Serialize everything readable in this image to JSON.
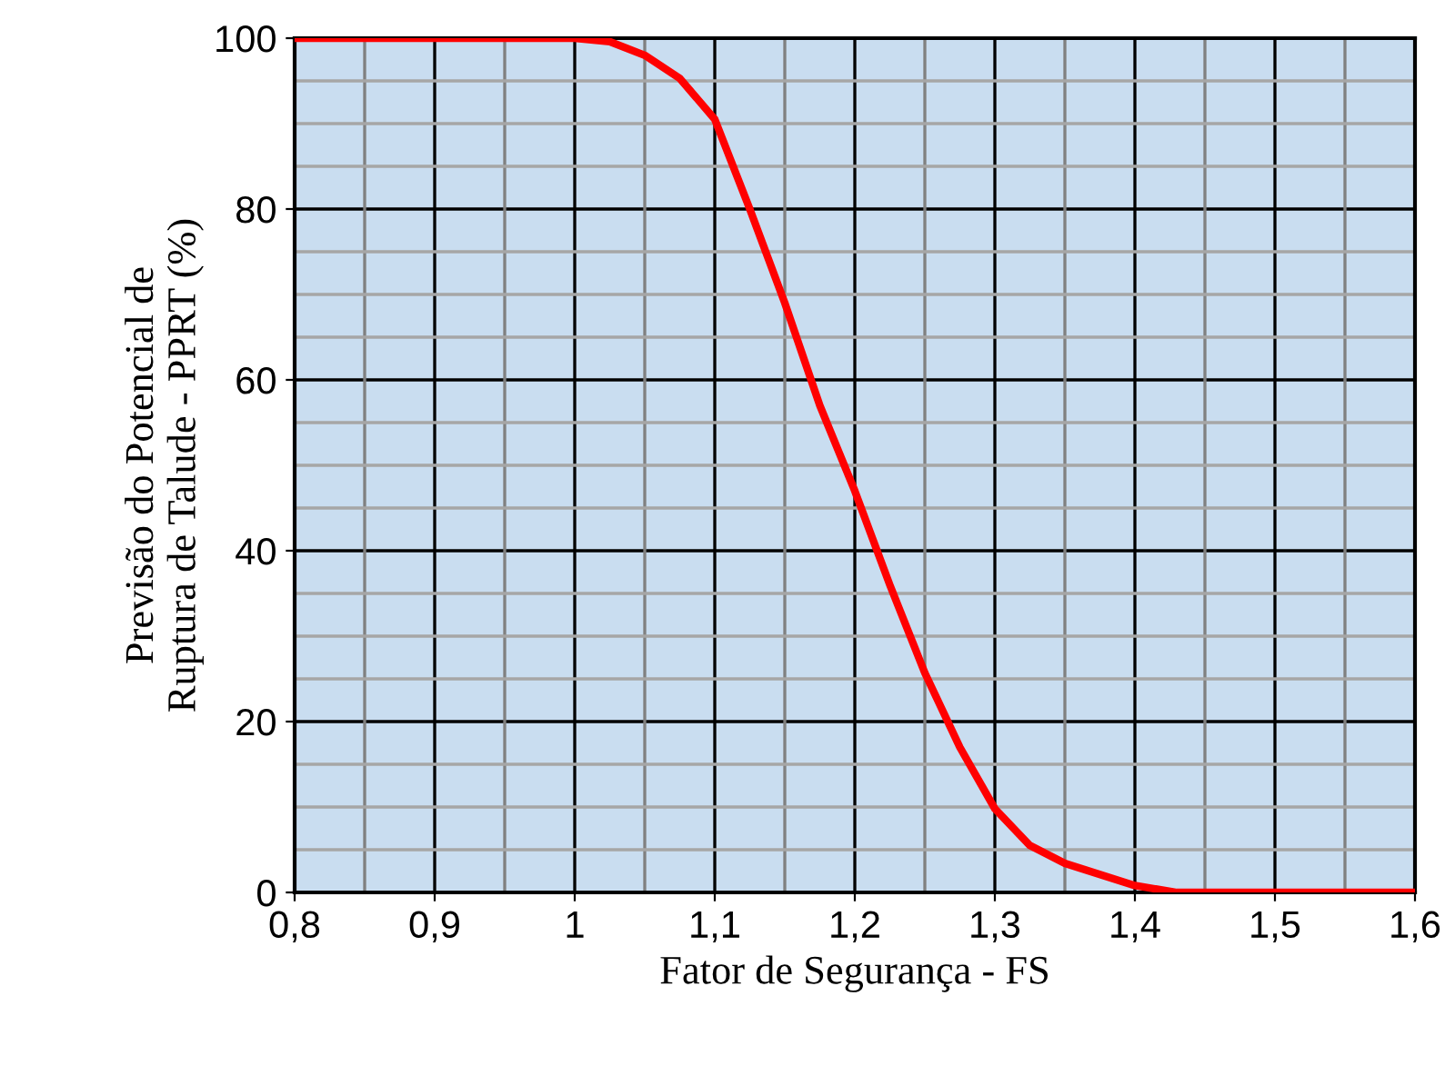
{
  "chart_data": {
    "type": "line",
    "xlabel": "Fator de Segurança - FS",
    "ylabel": "Previsão do Potencial de\nRuptura de Talude - PPRT (%)",
    "x": [
      0.8,
      0.9,
      1.0,
      1.025,
      1.05,
      1.075,
      1.1,
      1.125,
      1.15,
      1.175,
      1.2,
      1.225,
      1.25,
      1.275,
      1.3,
      1.325,
      1.35,
      1.375,
      1.4,
      1.43,
      1.5,
      1.6
    ],
    "series": [
      {
        "color": "#ff0000",
        "values": [
          100,
          100,
          100,
          99.6,
          98,
          95.3,
          90.5,
          80,
          69,
          57,
          47,
          36,
          25.7,
          17,
          9.8,
          5.5,
          3.4,
          2.1,
          0.8,
          0,
          0,
          0
        ]
      }
    ],
    "xlim": [
      0.8,
      1.6
    ],
    "xticks": [
      {
        "value": 0.8,
        "label": "0,8"
      },
      {
        "value": 0.9,
        "label": "0,9"
      },
      {
        "value": 1.0,
        "label": "1"
      },
      {
        "value": 1.1,
        "label": "1,1"
      },
      {
        "value": 1.2,
        "label": "1,2"
      },
      {
        "value": 1.3,
        "label": "1,3"
      },
      {
        "value": 1.4,
        "label": "1,4"
      },
      {
        "value": 1.5,
        "label": "1,5"
      },
      {
        "value": 1.6,
        "label": "1,6"
      }
    ],
    "ylim": [
      0,
      100
    ],
    "yticks": [
      0,
      20,
      40,
      60,
      80,
      100
    ],
    "grid": true,
    "marker": "none",
    "line_style": "solid"
  }
}
